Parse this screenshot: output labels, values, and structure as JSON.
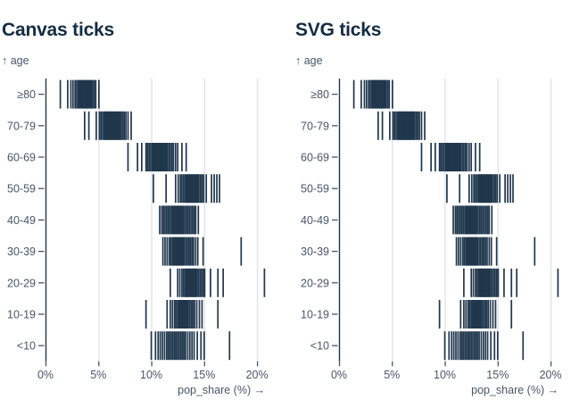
{
  "charts": [
    {
      "title": "Canvas ticks"
    },
    {
      "title": "SVG ticks"
    }
  ],
  "axes": {
    "y_label": "↑ age",
    "x_label": "pop_share (%) →",
    "x_tick_labels": [
      "0%",
      "5%",
      "10%",
      "15%",
      "20%"
    ]
  },
  "colors": {
    "tick": "#20374d",
    "zero_rule": "#20374d",
    "grid": "#e4e6e9",
    "title_text": "#132c45",
    "axis_text": "#475669",
    "background": "#ffffff"
  },
  "chart_data": {
    "type": "tick",
    "titles": [
      "Canvas ticks",
      "SVG ticks"
    ],
    "note_identical_data": true,
    "xlabel": "pop_share (%) →",
    "ylabel": "↑ age",
    "xlim": [
      0,
      21
    ],
    "x_tick_values": [
      0,
      5,
      10,
      15,
      20
    ],
    "grid": true,
    "legend": false,
    "categories": [
      "≥80",
      "70-79",
      "60-69",
      "50-59",
      "40-49",
      "30-39",
      "20-29",
      "10-19",
      "<10"
    ],
    "series": [
      {
        "age": "≥80",
        "values": [
          1.4,
          2.1,
          2.4,
          2.6,
          2.8,
          2.95,
          3.1,
          3.2,
          3.3,
          3.4,
          3.5,
          3.6,
          3.7,
          3.8,
          3.9,
          3.95,
          4.05,
          4.15,
          4.25,
          4.35,
          4.45,
          4.6,
          4.75,
          5.05
        ]
      },
      {
        "age": "70-79",
        "values": [
          3.7,
          4.1,
          4.8,
          5.1,
          5.25,
          5.4,
          5.55,
          5.65,
          5.75,
          5.85,
          5.95,
          6.05,
          6.15,
          6.25,
          6.35,
          6.45,
          6.55,
          6.65,
          6.75,
          6.85,
          6.95,
          7.05,
          7.15,
          7.3,
          7.45,
          7.6,
          7.8,
          8.1
        ]
      },
      {
        "age": "60-69",
        "values": [
          7.8,
          8.7,
          9.1,
          9.5,
          9.65,
          9.8,
          9.95,
          10.1,
          10.2,
          10.3,
          10.4,
          10.5,
          10.6,
          10.7,
          10.8,
          10.9,
          11.0,
          11.1,
          11.2,
          11.3,
          11.4,
          11.5,
          11.65,
          11.8,
          11.95,
          12.1,
          12.3,
          12.5,
          12.9,
          13.3
        ]
      },
      {
        "age": "50-59",
        "values": [
          10.2,
          11.4,
          12.3,
          12.55,
          12.75,
          12.9,
          13.05,
          13.2,
          13.3,
          13.4,
          13.5,
          13.6,
          13.7,
          13.8,
          13.9,
          14.0,
          14.1,
          14.2,
          14.3,
          14.4,
          14.5,
          14.65,
          14.8,
          14.95,
          15.2,
          15.7,
          15.95,
          16.2,
          16.45
        ]
      },
      {
        "age": "40-49",
        "values": [
          10.8,
          11.0,
          11.15,
          11.3,
          11.45,
          11.6,
          11.75,
          11.9,
          12.0,
          12.1,
          12.2,
          12.3,
          12.4,
          12.5,
          12.6,
          12.7,
          12.8,
          12.9,
          13.0,
          13.15,
          13.3,
          13.45,
          13.6,
          13.75,
          13.9,
          14.05,
          14.2,
          14.45
        ]
      },
      {
        "age": "30-39",
        "values": [
          11.1,
          11.3,
          11.5,
          11.7,
          11.85,
          12.0,
          12.1,
          12.2,
          12.3,
          12.4,
          12.5,
          12.6,
          12.7,
          12.8,
          12.9,
          13.0,
          13.1,
          13.25,
          13.4,
          13.55,
          13.7,
          13.85,
          14.0,
          14.2,
          14.4,
          14.9,
          18.5
        ]
      },
      {
        "age": "20-29",
        "values": [
          11.8,
          12.5,
          12.7,
          12.9,
          13.05,
          13.2,
          13.3,
          13.4,
          13.5,
          13.6,
          13.7,
          13.8,
          13.9,
          14.0,
          14.1,
          14.2,
          14.3,
          14.45,
          14.6,
          14.75,
          14.9,
          15.05,
          15.6,
          16.3,
          16.8,
          20.7
        ]
      },
      {
        "age": "10-19",
        "values": [
          9.5,
          11.5,
          11.8,
          12.0,
          12.2,
          12.35,
          12.5,
          12.6,
          12.7,
          12.8,
          12.9,
          13.0,
          13.1,
          13.2,
          13.3,
          13.4,
          13.5,
          13.65,
          13.8,
          13.95,
          14.1,
          14.3,
          14.55,
          14.8,
          16.3
        ]
      },
      {
        "age": "<10",
        "values": [
          10.0,
          10.4,
          10.65,
          10.85,
          11.05,
          11.25,
          11.45,
          11.6,
          11.75,
          11.9,
          12.05,
          12.2,
          12.35,
          12.5,
          12.65,
          12.8,
          12.95,
          13.1,
          13.25,
          13.45,
          13.65,
          13.85,
          14.05,
          14.35,
          14.7,
          15.0,
          17.4
        ]
      }
    ]
  }
}
